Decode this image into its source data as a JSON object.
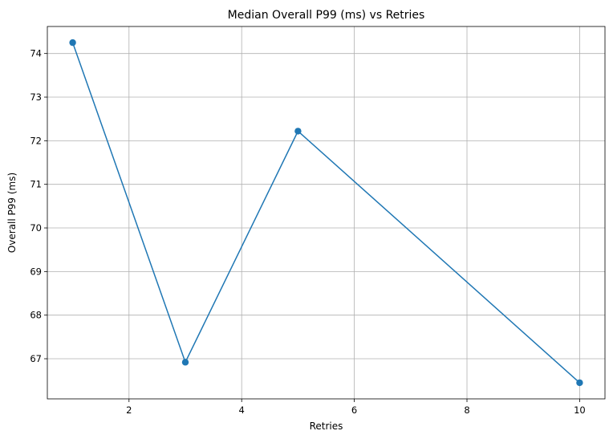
{
  "chart_data": {
    "type": "line",
    "title": "Median Overall P99 (ms) vs Retries",
    "xlabel": "Retries",
    "ylabel": "Overall P99 (ms)",
    "x": [
      1,
      3,
      5,
      10
    ],
    "series": [
      {
        "values": [
          74.25,
          66.92,
          72.22,
          66.45
        ],
        "color": "#1f77b4",
        "marker": "circle"
      }
    ],
    "xlim": [
      0.55,
      10.45
    ],
    "ylim": [
      66.08,
      74.62
    ],
    "xticks": [
      2,
      4,
      6,
      8,
      10
    ],
    "yticks": [
      67,
      68,
      69,
      70,
      71,
      72,
      73,
      74
    ],
    "grid": true,
    "legend": "none"
  }
}
